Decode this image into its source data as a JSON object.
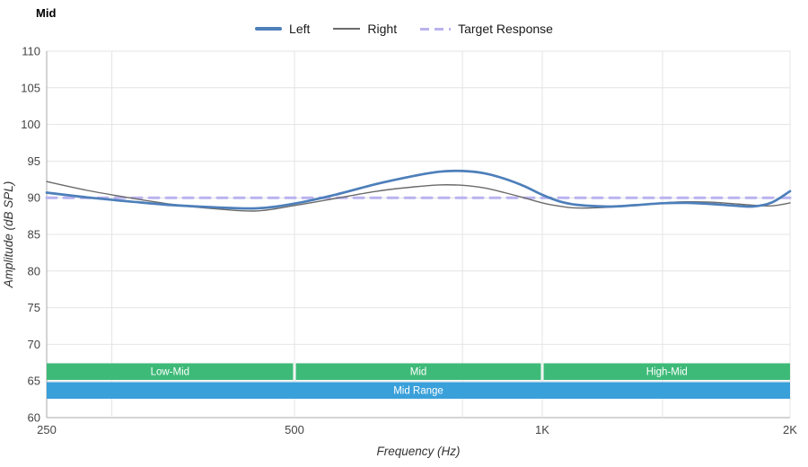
{
  "title": "Mid",
  "colors": {
    "left_line": "#4d7fba",
    "right_line": "#6a6a6a",
    "target_line": "#b9b3ef",
    "green_band": "#3eba78",
    "blue_band": "#3aa0da",
    "grid": "#e4e4e4",
    "axis": "#aaaaaa",
    "tick_text": "#444444"
  },
  "legend": [
    {
      "label": "Left",
      "style": "solid-thick",
      "color": "#4d7fba"
    },
    {
      "label": "Right",
      "style": "solid-thin",
      "color": "#6a6a6a"
    },
    {
      "label": "Target Response",
      "style": "dashed",
      "color": "#b9b3ef"
    }
  ],
  "axes": {
    "x_label": "Frequency (Hz)",
    "y_label": "Amplitude (dB SPL)",
    "x_scale": "log",
    "x_min": 250,
    "x_max": 2000,
    "y_min": 60,
    "y_max": 110,
    "x_ticks": [
      {
        "f": 250,
        "label": "250"
      },
      {
        "f": 500,
        "label": "500"
      },
      {
        "f": 1000,
        "label": "1K"
      },
      {
        "f": 2000,
        "label": "2K"
      }
    ],
    "y_ticks": [
      60,
      65,
      70,
      75,
      80,
      85,
      90,
      95,
      100,
      105,
      110
    ],
    "x_gridlines": [
      300,
      500,
      800,
      1000,
      1400,
      2000
    ]
  },
  "bands": {
    "green": [
      {
        "label": "Low-Mid",
        "from": 250,
        "to": 500
      },
      {
        "label": "Mid",
        "from": 500,
        "to": 1000
      },
      {
        "label": "High-Mid",
        "from": 1000,
        "to": 2000
      }
    ],
    "blue": {
      "label": "Mid Range",
      "from": 250,
      "to": 2000
    }
  },
  "chart_data": {
    "type": "line",
    "title": "Mid",
    "xlabel": "Frequency (Hz)",
    "ylabel": "Amplitude (dB SPL)",
    "x_range": [
      250,
      2000
    ],
    "ylim": [
      60,
      110
    ],
    "x_scale": "log",
    "grid": true,
    "legend_position": "top-center",
    "target_db": 90,
    "series": [
      {
        "name": "Left",
        "color": "#4d7fba",
        "width": 2.7,
        "dash": "",
        "points": [
          [
            250,
            90.7
          ],
          [
            280,
            90.05
          ],
          [
            315,
            89.5
          ],
          [
            355,
            89.0
          ],
          [
            400,
            88.7
          ],
          [
            450,
            88.55
          ],
          [
            500,
            89.2
          ],
          [
            560,
            90.4
          ],
          [
            630,
            91.9
          ],
          [
            700,
            93.0
          ],
          [
            750,
            93.55
          ],
          [
            800,
            93.65
          ],
          [
            850,
            93.35
          ],
          [
            900,
            92.6
          ],
          [
            950,
            91.6
          ],
          [
            1000,
            90.4
          ],
          [
            1050,
            89.5
          ],
          [
            1100,
            89.05
          ],
          [
            1200,
            88.8
          ],
          [
            1300,
            89.0
          ],
          [
            1400,
            89.25
          ],
          [
            1500,
            89.3
          ],
          [
            1600,
            89.15
          ],
          [
            1700,
            88.95
          ],
          [
            1800,
            88.8
          ],
          [
            1900,
            89.35
          ],
          [
            2000,
            90.9
          ]
        ]
      },
      {
        "name": "Right",
        "color": "#6a6a6a",
        "width": 1.4,
        "dash": "",
        "points": [
          [
            250,
            92.2
          ],
          [
            280,
            91.0
          ],
          [
            315,
            90.0
          ],
          [
            355,
            89.1
          ],
          [
            400,
            88.5
          ],
          [
            450,
            88.2
          ],
          [
            500,
            88.95
          ],
          [
            560,
            89.9
          ],
          [
            630,
            90.9
          ],
          [
            700,
            91.5
          ],
          [
            750,
            91.75
          ],
          [
            800,
            91.7
          ],
          [
            850,
            91.35
          ],
          [
            900,
            90.7
          ],
          [
            950,
            90.0
          ],
          [
            1000,
            89.3
          ],
          [
            1050,
            88.85
          ],
          [
            1100,
            88.6
          ],
          [
            1200,
            88.7
          ],
          [
            1300,
            89.0
          ],
          [
            1400,
            89.3
          ],
          [
            1500,
            89.45
          ],
          [
            1600,
            89.4
          ],
          [
            1700,
            89.2
          ],
          [
            1800,
            89.0
          ],
          [
            1900,
            88.9
          ],
          [
            2000,
            89.3
          ]
        ]
      },
      {
        "name": "Target Response",
        "color": "#b9b3ef",
        "width": 3,
        "dash": "11 8",
        "points": [
          [
            250,
            90
          ],
          [
            2000,
            90
          ]
        ]
      }
    ]
  }
}
